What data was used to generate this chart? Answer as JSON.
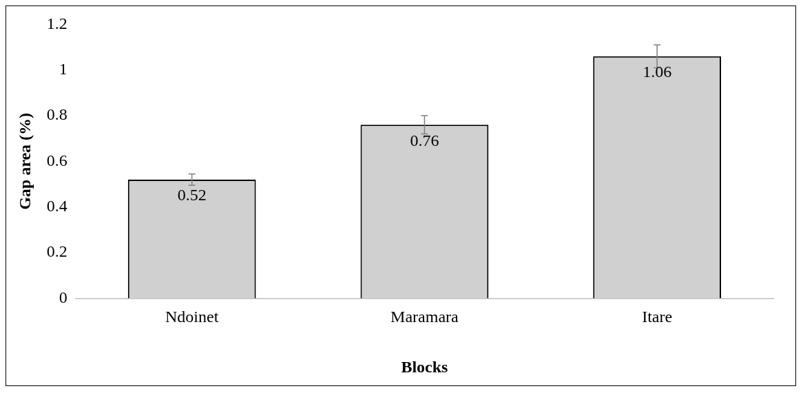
{
  "chart_data": {
    "type": "bar",
    "xlabel": "Blocks",
    "ylabel": "Gap area (%)",
    "categories": [
      "Ndoinet",
      "Maramara",
      "Itare"
    ],
    "series": [
      {
        "color": "#d0d0d0",
        "values": [
          0.52,
          0.76,
          1.06
        ],
        "errors": [
          0.025,
          0.04,
          0.05
        ]
      }
    ],
    "ylim": [
      0,
      1.2
    ],
    "yticks": [
      0,
      0.2,
      0.4,
      0.6,
      0.8,
      1,
      1.2
    ],
    "data_labels": true,
    "grid": false,
    "legend": false
  }
}
